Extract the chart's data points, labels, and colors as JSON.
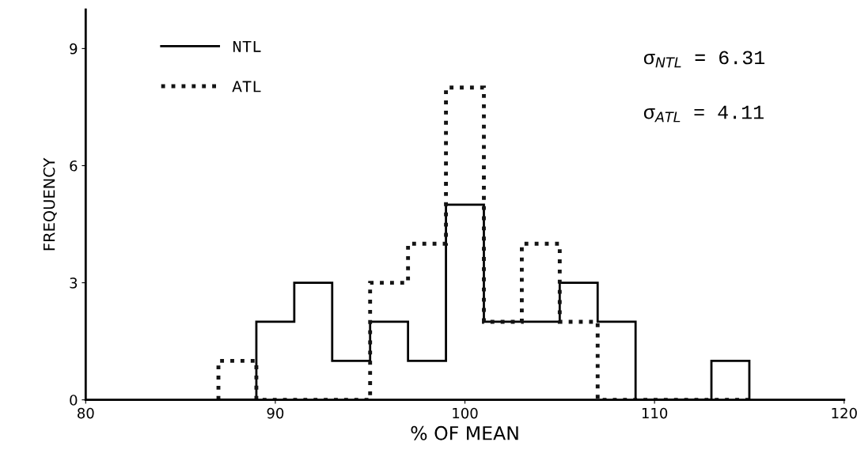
{
  "chart_data": {
    "type": "histogram",
    "xlabel": "% OF MEAN",
    "ylabel": "FREQUENCY",
    "bins": [
      87,
      89,
      91,
      93,
      95,
      97,
      99,
      101,
      103,
      105,
      107,
      109,
      111,
      113,
      115
    ],
    "series": [
      {
        "name": "NTL",
        "color": "#000000",
        "line_style": "solid",
        "values": [
          0,
          2,
          3,
          1,
          2,
          1,
          5,
          2,
          2,
          3,
          2,
          0,
          0,
          1
        ]
      },
      {
        "name": "ATL",
        "color": "#141414",
        "line_style": "dotted",
        "values": [
          1,
          0,
          0,
          0,
          3,
          4,
          8,
          2,
          4,
          2,
          0,
          0,
          0,
          0
        ]
      }
    ],
    "xlim": [
      80,
      120
    ],
    "xticks": [
      80,
      90,
      100,
      110,
      120
    ],
    "ylim": [
      0,
      10
    ],
    "yticks": [
      0,
      3,
      6,
      9
    ],
    "grid": false,
    "legend": "top left",
    "annotations": [
      "σ$_{NTL}$ = 6.31",
      "σ$_{ATL}$ = 4.11"
    ]
  }
}
